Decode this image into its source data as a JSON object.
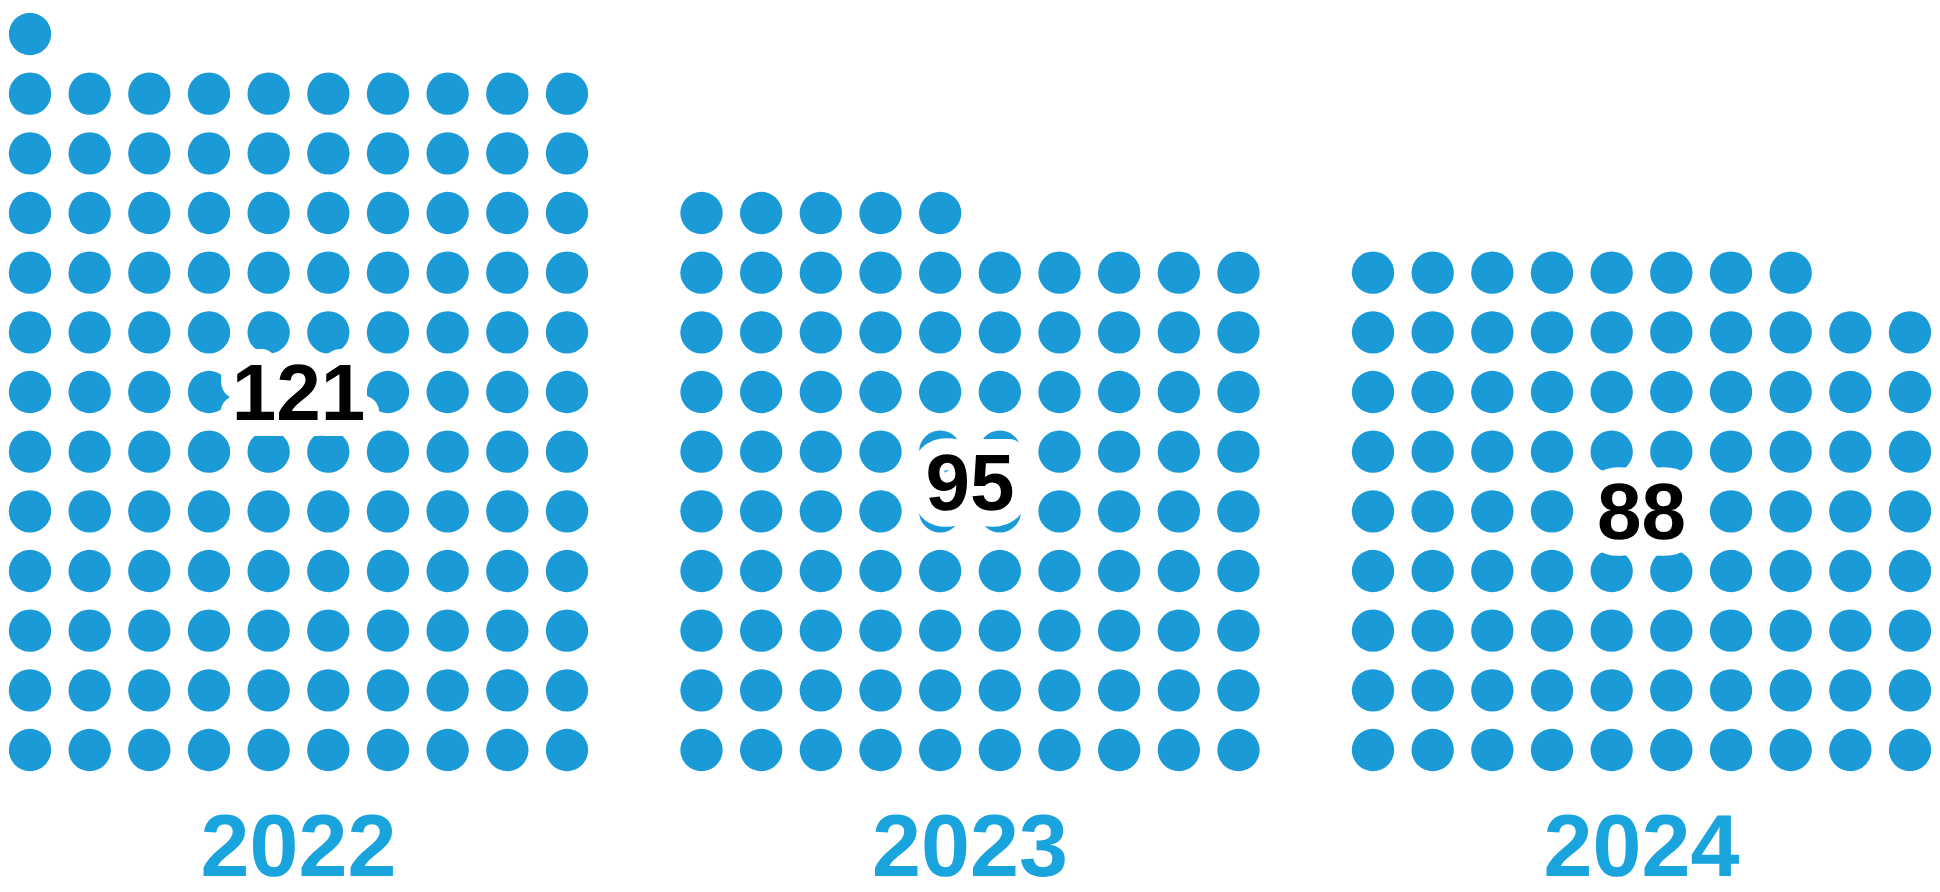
{
  "chart_data": {
    "type": "other",
    "categories": [
      "2022",
      "2023",
      "2024"
    ],
    "values": [
      121,
      95,
      88
    ],
    "color": "#1a9ad6",
    "data_labels": true
  }
}
